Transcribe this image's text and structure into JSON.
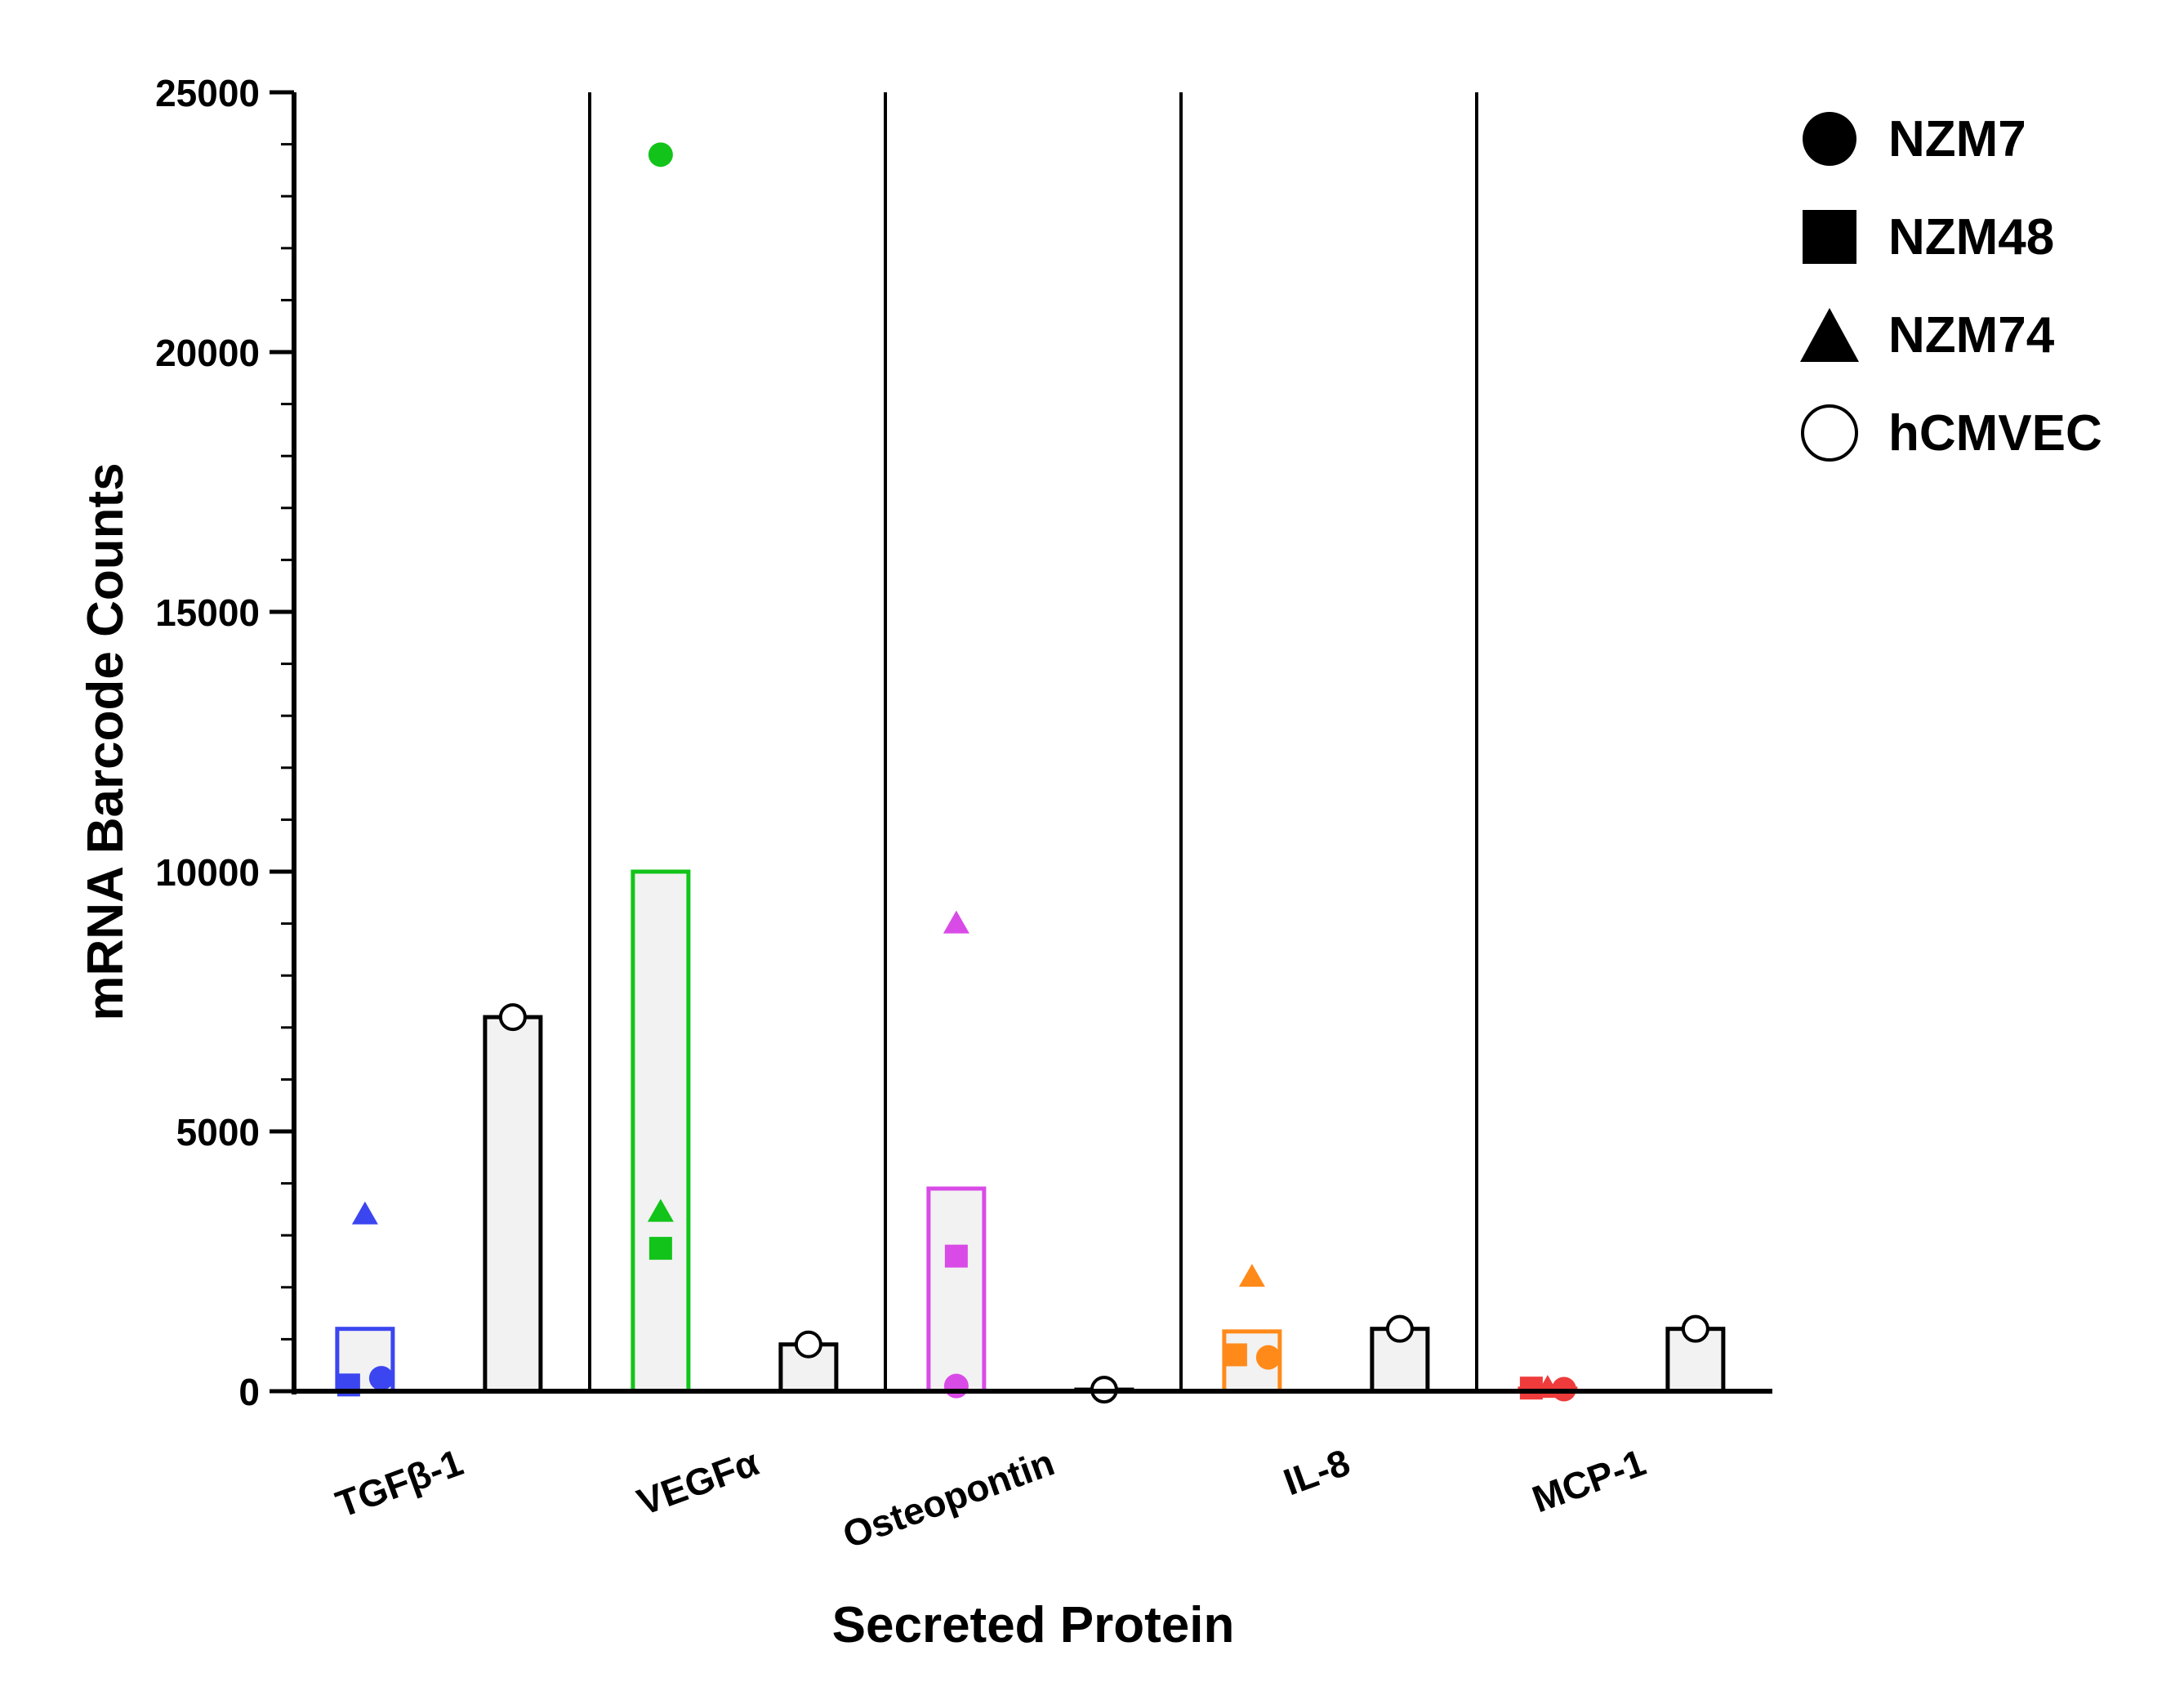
{
  "chart_data": {
    "type": "bar",
    "title": "",
    "xlabel": "Secreted Protein",
    "ylabel": "mRNA Barcode Counts",
    "ylim": [
      0,
      25000
    ],
    "yticks": [
      "0",
      "5000",
      "10000",
      "15000",
      "20000",
      "25000"
    ],
    "categories": [
      "TGFβ-1",
      "VEGFα",
      "Osteopontin",
      "IL-8",
      "MCP-1"
    ],
    "category_colors": [
      "#3b46f0",
      "#12c41a",
      "#d94be6",
      "#ff8a1a",
      "#ef3b3b"
    ],
    "reference_color": "#000000",
    "groups": [
      {
        "category": "TGFβ-1",
        "melanoma_bar": 1200,
        "NZM7": 250,
        "NZM48": 120,
        "NZM74": 3400,
        "hCMVEC": 7200
      },
      {
        "category": "VEGFα",
        "melanoma_bar": 10000,
        "NZM7": 23800,
        "NZM48": 2750,
        "NZM74": 3450,
        "hCMVEC": 900
      },
      {
        "category": "Osteopontin",
        "melanoma_bar": 3900,
        "NZM7": 100,
        "NZM48": 2600,
        "NZM74": 9000,
        "hCMVEC": 30
      },
      {
        "category": "IL-8",
        "melanoma_bar": 1150,
        "NZM7": 650,
        "NZM48": 700,
        "NZM74": 2200,
        "hCMVEC": 1200
      },
      {
        "category": "MCP-1",
        "melanoma_bar": 50,
        "NZM7": 40,
        "NZM48": 60,
        "NZM74": 60,
        "hCMVEC": 1200
      }
    ],
    "legend": [
      {
        "label": "NZM7",
        "shape": "circle-filled"
      },
      {
        "label": "NZM48",
        "shape": "square-filled"
      },
      {
        "label": "NZM74",
        "shape": "triangle-filled"
      },
      {
        "label": "hCMVEC",
        "shape": "circle-open"
      }
    ],
    "legend_position": "top-right"
  }
}
